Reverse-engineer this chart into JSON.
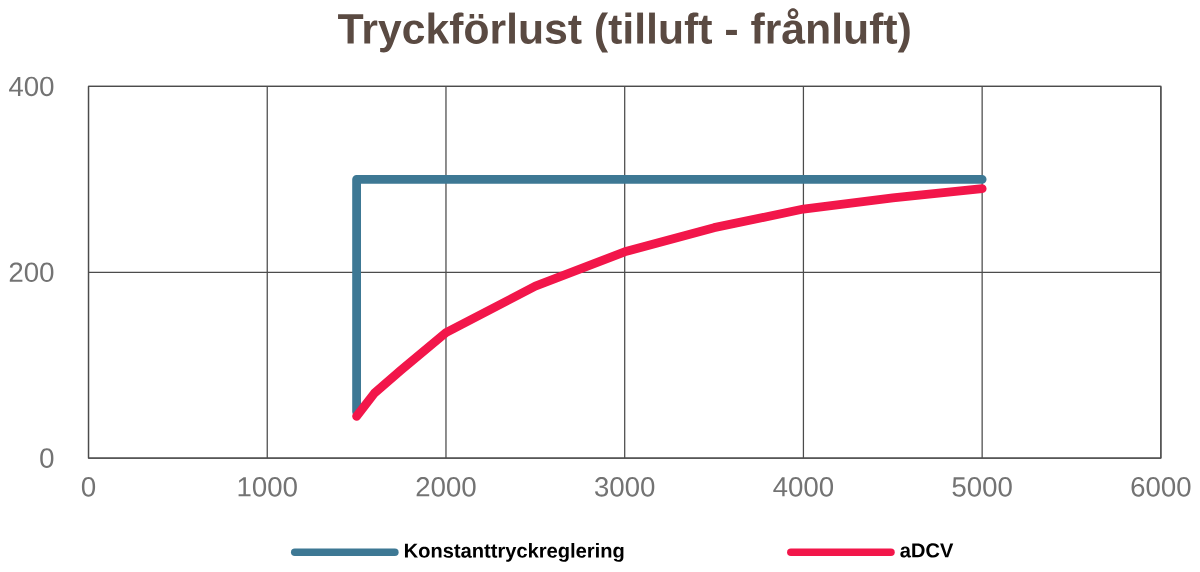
{
  "chart_data": {
    "type": "line",
    "title": "Tryckförlust (tilluft - frånluft)",
    "xlim": [
      0,
      6000
    ],
    "ylim": [
      0,
      400
    ],
    "xticks": [
      0,
      1000,
      2000,
      3000,
      4000,
      5000,
      6000
    ],
    "yticks": [
      0,
      200,
      400
    ],
    "grid": true,
    "legend": "bottom",
    "marker": "none",
    "line_style": "solid",
    "series": [
      {
        "name": "Konstanttryckreglering",
        "color": "#3d7894",
        "x": [
          1500,
          1500,
          5000
        ],
        "values": [
          50,
          300,
          300
        ]
      },
      {
        "name": "aDCV",
        "color": "#f2164a",
        "x": [
          1500,
          1600,
          1750,
          2000,
          2500,
          3000,
          3500,
          4000,
          4500,
          5000
        ],
        "values": [
          45,
          70,
          95,
          135,
          185,
          222,
          248,
          268,
          280,
          290
        ]
      }
    ]
  }
}
